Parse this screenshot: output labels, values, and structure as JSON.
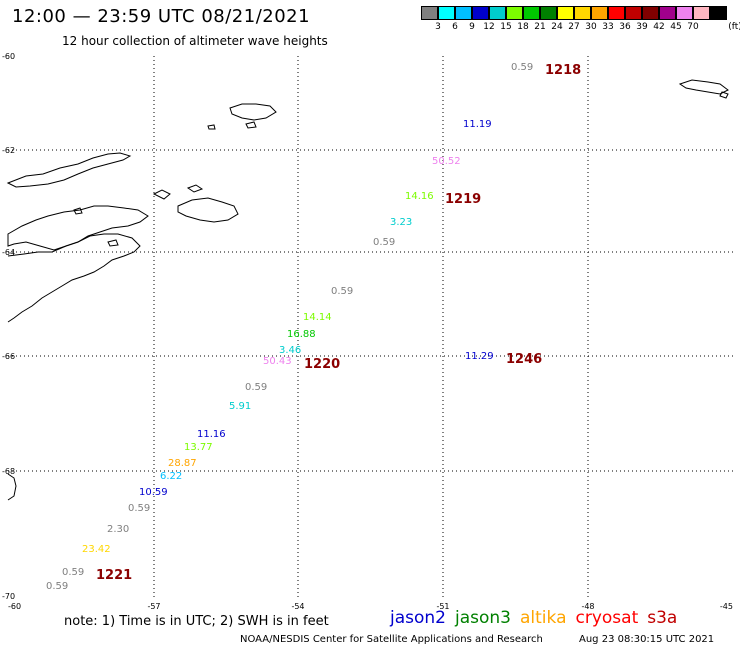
{
  "header": {
    "title": "12:00 — 23:59 UTC 08/21/2021",
    "subtitle": "12 hour collection of altimeter wave heights"
  },
  "legend": {
    "unit": "(ft)",
    "colors": [
      "#808080",
      "#00ffff",
      "#00bfff",
      "#0000cd",
      "#00cdcd",
      "#7cfc00",
      "#00c800",
      "#008000",
      "#ffff00",
      "#ffd700",
      "#ffa500",
      "#ff0000",
      "#c00000",
      "#800000",
      "#a0008c",
      "#ee82ee",
      "#ffb6c1",
      "#000000"
    ],
    "ticks": [
      "3",
      "6",
      "9",
      "12",
      "15",
      "18",
      "21",
      "24",
      "27",
      "30",
      "33",
      "36",
      "39",
      "42",
      "45",
      "70"
    ]
  },
  "axes": {
    "lat_labels": [
      "-60",
      "-62",
      "-64",
      "-66",
      "-68",
      "-70"
    ],
    "lon_labels": [
      "-60",
      "-57",
      "-54",
      "-51",
      "-48",
      "-45"
    ]
  },
  "tracks": [
    {
      "label": "1218",
      "color": "#8b0000"
    },
    {
      "label": "1219",
      "color": "#8b0000"
    },
    {
      "label": "1220",
      "color": "#8b0000"
    },
    {
      "label": "1221",
      "color": "#8b0000"
    },
    {
      "label": "1246",
      "color": "#008000"
    }
  ],
  "observations": [
    {
      "value": "0.59",
      "color": "#808080"
    },
    {
      "value": "11.19",
      "color": "#0000cd"
    },
    {
      "value": "50.52",
      "color": "#ee82ee"
    },
    {
      "value": "14.16",
      "color": "#7cfc00"
    },
    {
      "value": "3.23",
      "color": "#00cdcd"
    },
    {
      "value": "0.59",
      "color": "#808080"
    },
    {
      "value": "0.59",
      "color": "#808080"
    },
    {
      "value": "14.14",
      "color": "#7cfc00"
    },
    {
      "value": "16.88",
      "color": "#00c800"
    },
    {
      "value": "3.46",
      "color": "#00cdcd"
    },
    {
      "value": "50.43",
      "color": "#ee82ee"
    },
    {
      "value": "11.29",
      "color": "#0000cd"
    },
    {
      "value": "0.59",
      "color": "#808080"
    },
    {
      "value": "5.91",
      "color": "#00cdcd"
    },
    {
      "value": "11.16",
      "color": "#0000cd"
    },
    {
      "value": "13.77",
      "color": "#7cfc00"
    },
    {
      "value": "28.87",
      "color": "#ffa500"
    },
    {
      "value": "6.22",
      "color": "#00bfff"
    },
    {
      "value": "10.59",
      "color": "#0000cd"
    },
    {
      "value": "0.59",
      "color": "#808080"
    },
    {
      "value": "2.30",
      "color": "#808080"
    },
    {
      "value": "23.42",
      "color": "#ffd700"
    },
    {
      "value": "0.59",
      "color": "#808080"
    },
    {
      "value": "0.59",
      "color": "#808080"
    }
  ],
  "footer": {
    "note": "note:  1) Time is in UTC;  2) SWH is in feet",
    "satellites": [
      {
        "name": "jason2",
        "color": "#0000cd"
      },
      {
        "name": "jason3",
        "color": "#008000"
      },
      {
        "name": "altika",
        "color": "#ffa500"
      },
      {
        "name": "cryosat",
        "color": "#ff0000"
      },
      {
        "name": "s3a",
        "color": "#c00000"
      }
    ],
    "credit": "NOAA/NESDIS Center for Satellite Applications and Research",
    "timestamp": "Aug 23 08:30:15 UTC 2021"
  }
}
